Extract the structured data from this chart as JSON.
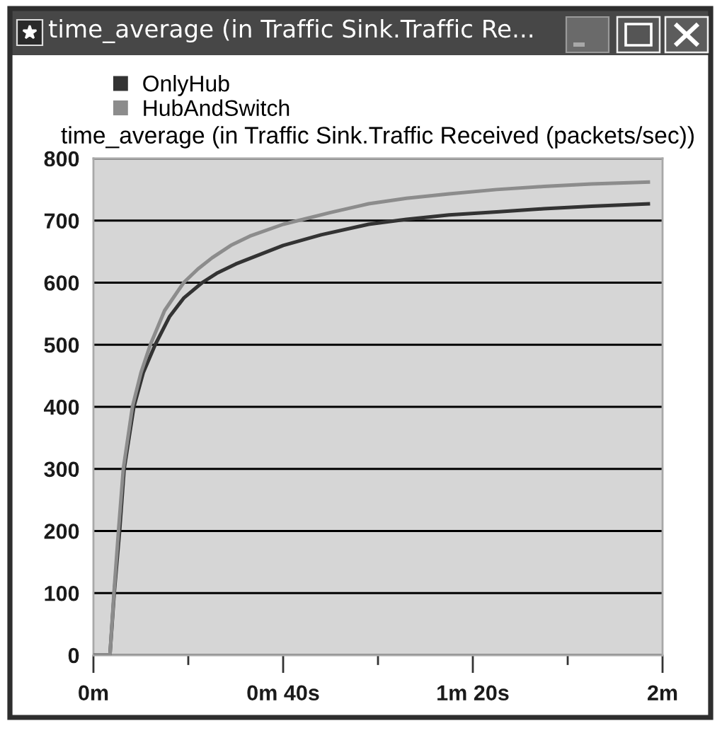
{
  "chart_data": {
    "type": "line",
    "title": "time_average (in Traffic Sink.Traffic Re...",
    "subtitle": "time_average (in Traffic Sink.Traffic Received (packets/sec))",
    "xlim": [
      0,
      2
    ],
    "xticks": [
      {
        "value": 0,
        "label": "0m"
      },
      {
        "value": 0.3333,
        "label": null
      },
      {
        "value": 0.6667,
        "label": "0m 40s"
      },
      {
        "value": 1,
        "label": null
      },
      {
        "value": 1.3333,
        "label": "1m 20s"
      },
      {
        "value": 1.6667,
        "label": null
      },
      {
        "value": 2,
        "label": "2m"
      }
    ],
    "ylim": [
      0,
      800
    ],
    "yticks": [
      0,
      100,
      200,
      300,
      400,
      500,
      600,
      700,
      800
    ],
    "grid": "y",
    "legend": "top left",
    "line_style": "solid",
    "series": [
      {
        "name": "OnlyHub",
        "color": "#333333",
        "x": [
          0,
          0.058,
          0.073,
          0.092,
          0.108,
          0.142,
          0.175,
          0.217,
          0.267,
          0.317,
          0.382,
          0.433,
          0.5,
          0.6,
          0.667,
          0.8,
          0.967,
          1.1,
          1.25,
          1.417,
          1.583,
          1.75,
          1.95
        ],
        "values": [
          0,
          0,
          100,
          200,
          300,
          400,
          455,
          500,
          545,
          575,
          600,
          615,
          630,
          648,
          660,
          677,
          694,
          702,
          709,
          714,
          719,
          723,
          727
        ]
      },
      {
        "name": "HubAndSwitch",
        "color": "#8c8c8c",
        "x": [
          0,
          0.058,
          0.072,
          0.088,
          0.105,
          0.137,
          0.167,
          0.2,
          0.25,
          0.317,
          0.367,
          0.417,
          0.483,
          0.55,
          0.667,
          0.833,
          0.967,
          1.1,
          1.25,
          1.417,
          1.583,
          1.75,
          1.95
        ],
        "values": [
          0,
          0,
          100,
          200,
          300,
          400,
          455,
          500,
          555,
          600,
          622,
          640,
          660,
          675,
          694,
          713,
          727,
          736,
          743,
          750,
          755,
          759,
          762
        ]
      }
    ]
  }
}
